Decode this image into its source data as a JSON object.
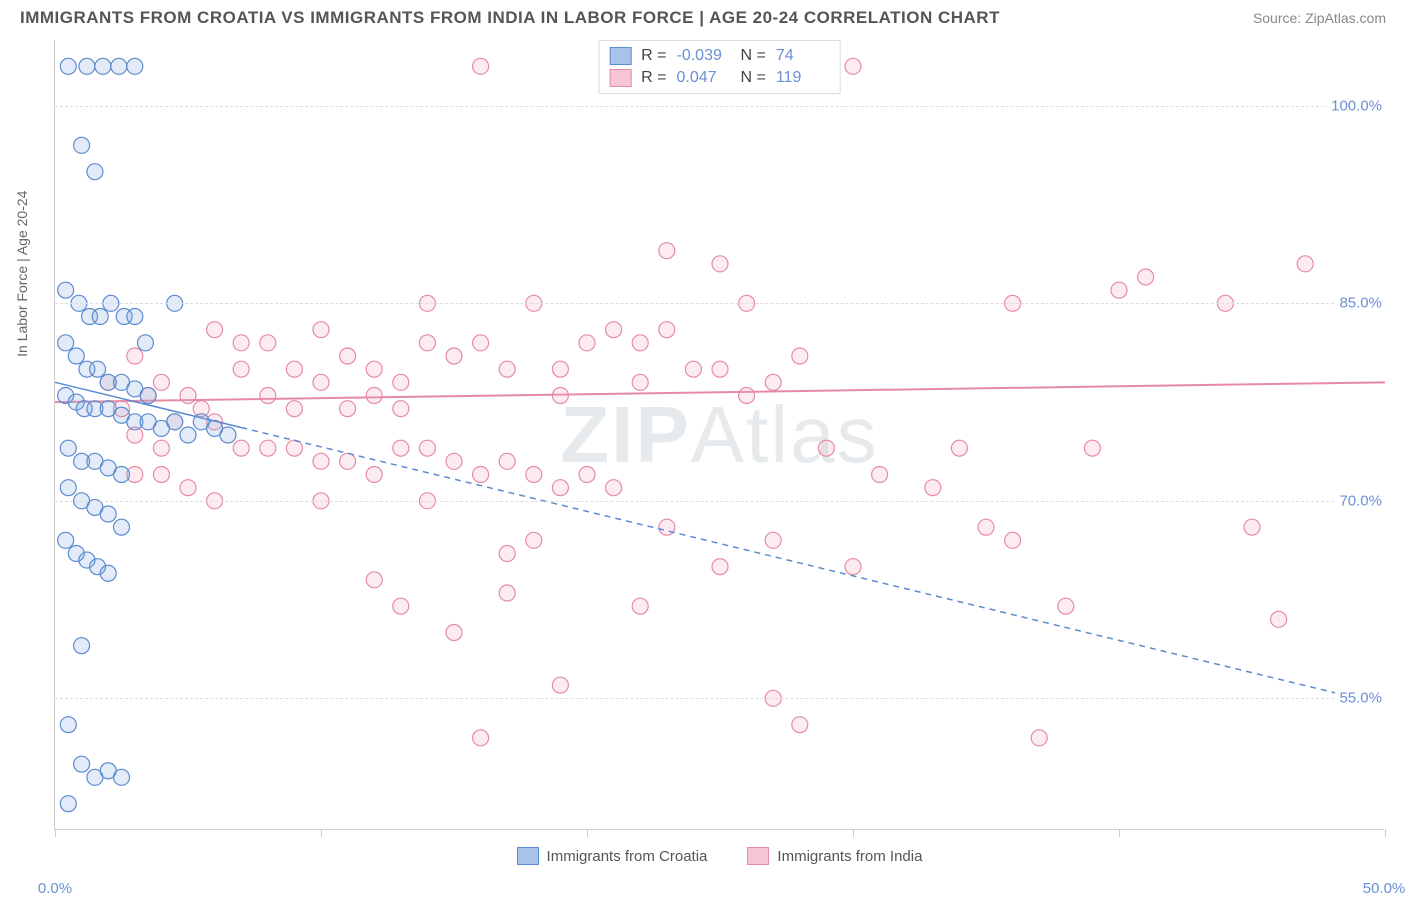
{
  "title": "IMMIGRANTS FROM CROATIA VS IMMIGRANTS FROM INDIA IN LABOR FORCE | AGE 20-24 CORRELATION CHART",
  "source": "Source: ZipAtlas.com",
  "watermark": "ZIPAtlas",
  "yaxis_label": "In Labor Force | Age 20-24",
  "chart": {
    "type": "scatter",
    "background_color": "#ffffff",
    "grid_color": "#dddddd",
    "axis_color": "#cccccc",
    "xlim": [
      0,
      50
    ],
    "ylim": [
      45,
      105
    ],
    "xticks": [
      0,
      10,
      20,
      30,
      40,
      50
    ],
    "xtick_labels": [
      "0.0%",
      "",
      "",
      "",
      "",
      "50.0%"
    ],
    "yticks": [
      55,
      70,
      85,
      100
    ],
    "ytick_labels": [
      "55.0%",
      "70.0%",
      "85.0%",
      "100.0%"
    ],
    "label_color": "#6b8fd4",
    "label_fontsize": 15,
    "marker_radius": 8,
    "marker_stroke_width": 1.2,
    "marker_fill_opacity": 0.22,
    "series": [
      {
        "name": "Immigrants from Croatia",
        "color_stroke": "#5b8bd0",
        "color_fill": "#7ba3db",
        "R": "-0.039",
        "N": "74",
        "trend": {
          "y_at_xmin": 79.0,
          "y_at_xmax": 54.5,
          "dash": "6 5",
          "extrapolated_from_x": 7,
          "width": 1.5
        },
        "points": [
          [
            0.5,
            103
          ],
          [
            1.2,
            103
          ],
          [
            1.8,
            103
          ],
          [
            2.4,
            103
          ],
          [
            3.0,
            103
          ],
          [
            1.5,
            95
          ],
          [
            1.0,
            97
          ],
          [
            0.4,
            86
          ],
          [
            0.9,
            85
          ],
          [
            1.3,
            84
          ],
          [
            1.7,
            84
          ],
          [
            2.1,
            85
          ],
          [
            2.6,
            84
          ],
          [
            3.0,
            84
          ],
          [
            3.4,
            82
          ],
          [
            4.5,
            85
          ],
          [
            0.4,
            82
          ],
          [
            0.8,
            81
          ],
          [
            1.2,
            80
          ],
          [
            1.6,
            80
          ],
          [
            2.0,
            79
          ],
          [
            2.5,
            79
          ],
          [
            3.0,
            78.5
          ],
          [
            3.5,
            78
          ],
          [
            0.4,
            78
          ],
          [
            0.8,
            77.5
          ],
          [
            1.1,
            77
          ],
          [
            1.5,
            77
          ],
          [
            2.0,
            77
          ],
          [
            2.5,
            76.5
          ],
          [
            3.0,
            76
          ],
          [
            3.5,
            76
          ],
          [
            4.0,
            75.5
          ],
          [
            4.5,
            76
          ],
          [
            5.0,
            75
          ],
          [
            5.5,
            76
          ],
          [
            6.0,
            75.5
          ],
          [
            6.5,
            75
          ],
          [
            0.5,
            74
          ],
          [
            1.0,
            73
          ],
          [
            1.5,
            73
          ],
          [
            2.0,
            72.5
          ],
          [
            2.5,
            72
          ],
          [
            0.5,
            71
          ],
          [
            1.0,
            70
          ],
          [
            1.5,
            69.5
          ],
          [
            2.0,
            69
          ],
          [
            2.5,
            68
          ],
          [
            0.4,
            67
          ],
          [
            0.8,
            66
          ],
          [
            1.2,
            65.5
          ],
          [
            1.6,
            65
          ],
          [
            2.0,
            64.5
          ],
          [
            1.0,
            59
          ],
          [
            0.5,
            53
          ],
          [
            1.0,
            50
          ],
          [
            1.5,
            49
          ],
          [
            2.0,
            49.5
          ],
          [
            2.5,
            49
          ],
          [
            0.5,
            47
          ]
        ]
      },
      {
        "name": "Immigrants from India",
        "color_stroke": "#e68aa6",
        "color_fill": "#f2a8be",
        "R": "0.047",
        "N": "119",
        "trend": {
          "y_at_xmin": 77.5,
          "y_at_xmax": 79.0,
          "dash": "none",
          "extrapolated_from_x": 0,
          "width": 2
        },
        "points": [
          [
            16,
            103
          ],
          [
            30,
            103
          ],
          [
            38,
            62
          ],
          [
            37,
            52
          ],
          [
            41,
            87
          ],
          [
            44,
            85
          ],
          [
            45,
            68
          ],
          [
            46,
            61
          ],
          [
            47,
            88
          ],
          [
            23,
            89
          ],
          [
            25,
            88
          ],
          [
            26,
            85
          ],
          [
            36,
            85
          ],
          [
            39,
            74
          ],
          [
            40,
            86
          ],
          [
            14,
            85
          ],
          [
            14,
            82
          ],
          [
            15,
            81
          ],
          [
            16,
            82
          ],
          [
            17,
            80
          ],
          [
            18,
            85
          ],
          [
            19,
            80
          ],
          [
            19,
            78
          ],
          [
            20,
            82
          ],
          [
            21,
            83
          ],
          [
            22,
            82
          ],
          [
            22,
            79
          ],
          [
            23,
            83
          ],
          [
            24,
            80
          ],
          [
            25,
            80
          ],
          [
            26,
            78
          ],
          [
            27,
            79
          ],
          [
            28,
            81
          ],
          [
            6,
            83
          ],
          [
            7,
            82
          ],
          [
            7,
            80
          ],
          [
            8,
            82
          ],
          [
            8,
            78
          ],
          [
            9,
            80
          ],
          [
            9,
            77
          ],
          [
            10,
            83
          ],
          [
            10,
            79
          ],
          [
            11,
            81
          ],
          [
            11,
            77
          ],
          [
            12,
            78
          ],
          [
            12,
            80
          ],
          [
            13,
            79
          ],
          [
            13,
            77
          ],
          [
            2,
            79
          ],
          [
            2.5,
            77
          ],
          [
            3,
            81
          ],
          [
            3.5,
            78
          ],
          [
            4,
            79
          ],
          [
            4.5,
            76
          ],
          [
            5,
            78
          ],
          [
            5.5,
            77
          ],
          [
            6,
            76
          ],
          [
            7,
            74
          ],
          [
            8,
            74
          ],
          [
            9,
            74
          ],
          [
            10,
            73
          ],
          [
            11,
            73
          ],
          [
            12,
            72
          ],
          [
            13,
            74
          ],
          [
            14,
            74
          ],
          [
            15,
            73
          ],
          [
            16,
            72
          ],
          [
            17,
            73
          ],
          [
            18,
            72
          ],
          [
            19,
            71
          ],
          [
            20,
            72
          ],
          [
            21,
            71
          ],
          [
            10,
            70
          ],
          [
            14,
            70
          ],
          [
            17,
            66
          ],
          [
            18,
            67
          ],
          [
            17,
            63
          ],
          [
            23,
            68
          ],
          [
            25,
            65
          ],
          [
            27,
            67
          ],
          [
            29,
            74
          ],
          [
            30,
            65
          ],
          [
            31,
            72
          ],
          [
            33,
            71
          ],
          [
            34,
            74
          ],
          [
            35,
            68
          ],
          [
            36,
            67
          ],
          [
            15,
            60
          ],
          [
            19,
            56
          ],
          [
            22,
            62
          ],
          [
            12,
            64
          ],
          [
            13,
            62
          ],
          [
            16,
            52
          ],
          [
            27,
            55
          ],
          [
            28,
            53
          ],
          [
            3,
            72
          ],
          [
            4,
            72
          ],
          [
            5,
            71
          ],
          [
            6,
            70
          ],
          [
            3,
            75
          ],
          [
            4,
            74
          ]
        ]
      }
    ]
  },
  "legend_bottom": [
    {
      "label": "Immigrants from Croatia",
      "fill": "#a8c2e8",
      "stroke": "#5b8bd0"
    },
    {
      "label": "Immigrants from India",
      "fill": "#f6c6d4",
      "stroke": "#e68aa6"
    }
  ]
}
